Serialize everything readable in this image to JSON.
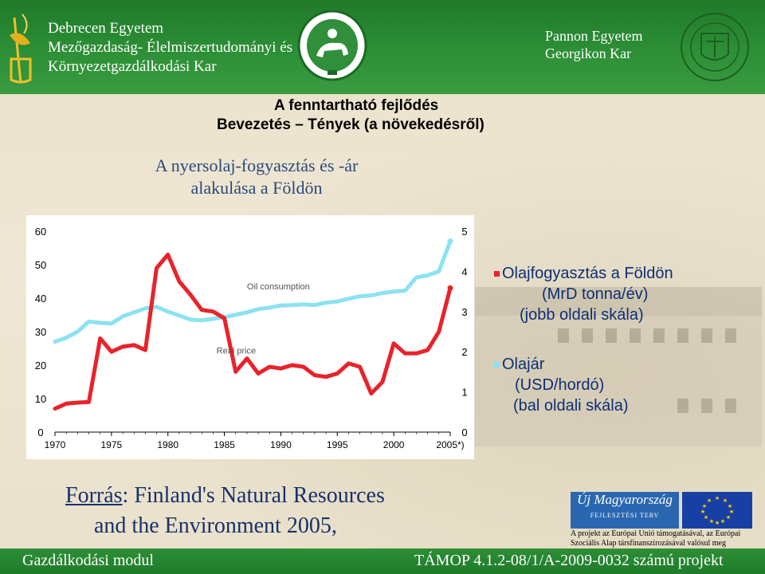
{
  "header": {
    "debrecen_lines": [
      "Debrecen Egyetem",
      "Mezőgazdaság- Élelmiszertudományi és",
      "Környezetgazdálkodási Kar"
    ],
    "pannon_lines": [
      "Pannon Egyetem",
      "Georgikon Kar"
    ]
  },
  "titles": {
    "line1": "A fenntartható fejlődés",
    "line2": "Bevezetés – Tények (a növekedésről)",
    "subtitle": "A nyersolaj-fogyasztás és -ár alakulása a Földön"
  },
  "chart_data": {
    "type": "line",
    "x": [
      1970,
      1971,
      1972,
      1973,
      1974,
      1975,
      1976,
      1977,
      1978,
      1979,
      1980,
      1981,
      1982,
      1983,
      1984,
      1985,
      1986,
      1987,
      1988,
      1989,
      1990,
      1991,
      1992,
      1993,
      1994,
      1995,
      1996,
      1997,
      1998,
      1999,
      2000,
      2001,
      2002,
      2003,
      2004,
      2005
    ],
    "x_tick_labels": [
      "1970",
      "1975",
      "1980",
      "1985",
      "1990",
      "1995",
      "2000",
      "2005*)"
    ],
    "left_axis_ticks": [
      "0",
      "10",
      "20",
      "30",
      "40",
      "50",
      "60"
    ],
    "right_axis_ticks": [
      "0",
      "1",
      "2",
      "3",
      "4",
      "5"
    ],
    "ylim_left": [
      0,
      60
    ],
    "ylim_right": [
      0,
      5
    ],
    "grid": false,
    "series": [
      {
        "name": "Oil consumption",
        "axis": "right",
        "color": "#8ce2f0",
        "values": [
          2.25,
          2.35,
          2.5,
          2.75,
          2.72,
          2.7,
          2.88,
          2.98,
          3.08,
          3.12,
          3.0,
          2.9,
          2.8,
          2.78,
          2.82,
          2.86,
          2.92,
          2.98,
          3.06,
          3.1,
          3.15,
          3.16,
          3.18,
          3.16,
          3.22,
          3.25,
          3.32,
          3.38,
          3.4,
          3.46,
          3.5,
          3.52,
          3.85,
          3.9,
          4.0,
          4.75
        ]
      },
      {
        "name": "Real price",
        "axis": "left",
        "color": "#e8232b",
        "values": [
          7.0,
          8.5,
          8.8,
          9.0,
          28.0,
          24.0,
          25.5,
          26.0,
          24.5,
          49.0,
          53.0,
          45.0,
          41.0,
          36.5,
          36.0,
          34.0,
          18.0,
          22.0,
          17.5,
          19.5,
          19.0,
          20.0,
          19.5,
          17.0,
          16.5,
          17.5,
          20.5,
          19.5,
          11.5,
          15.0,
          26.5,
          23.5,
          23.5,
          24.5,
          30.0,
          43.0
        ]
      }
    ]
  },
  "legend": {
    "item1_lines": [
      "Olajfogyasztás a Földön",
      "(MrD tonna/év)",
      "(jobb oldali skála)"
    ],
    "item2_lines": [
      "Olajár",
      "(USD/hordó)",
      "(bal oldali skála)"
    ]
  },
  "source": {
    "label": "Forrás",
    "rest_line1": ": Finland's Natural Resources",
    "line2": "and the Environment 2005,"
  },
  "eu": {
    "brand": "Új Magyarország",
    "brand_sub": "FEJLESZTÉSI TERV",
    "note_lines": [
      "A projekt az Európai Unió támogatásával, az Európai",
      "Szociális Alap társfinanszírozásával valósul meg"
    ]
  },
  "footer": {
    "left": "Gazdálkodási modul",
    "right": "TÁMOP 4.1.2-08/1/A-2009-0032 számú projekt"
  }
}
